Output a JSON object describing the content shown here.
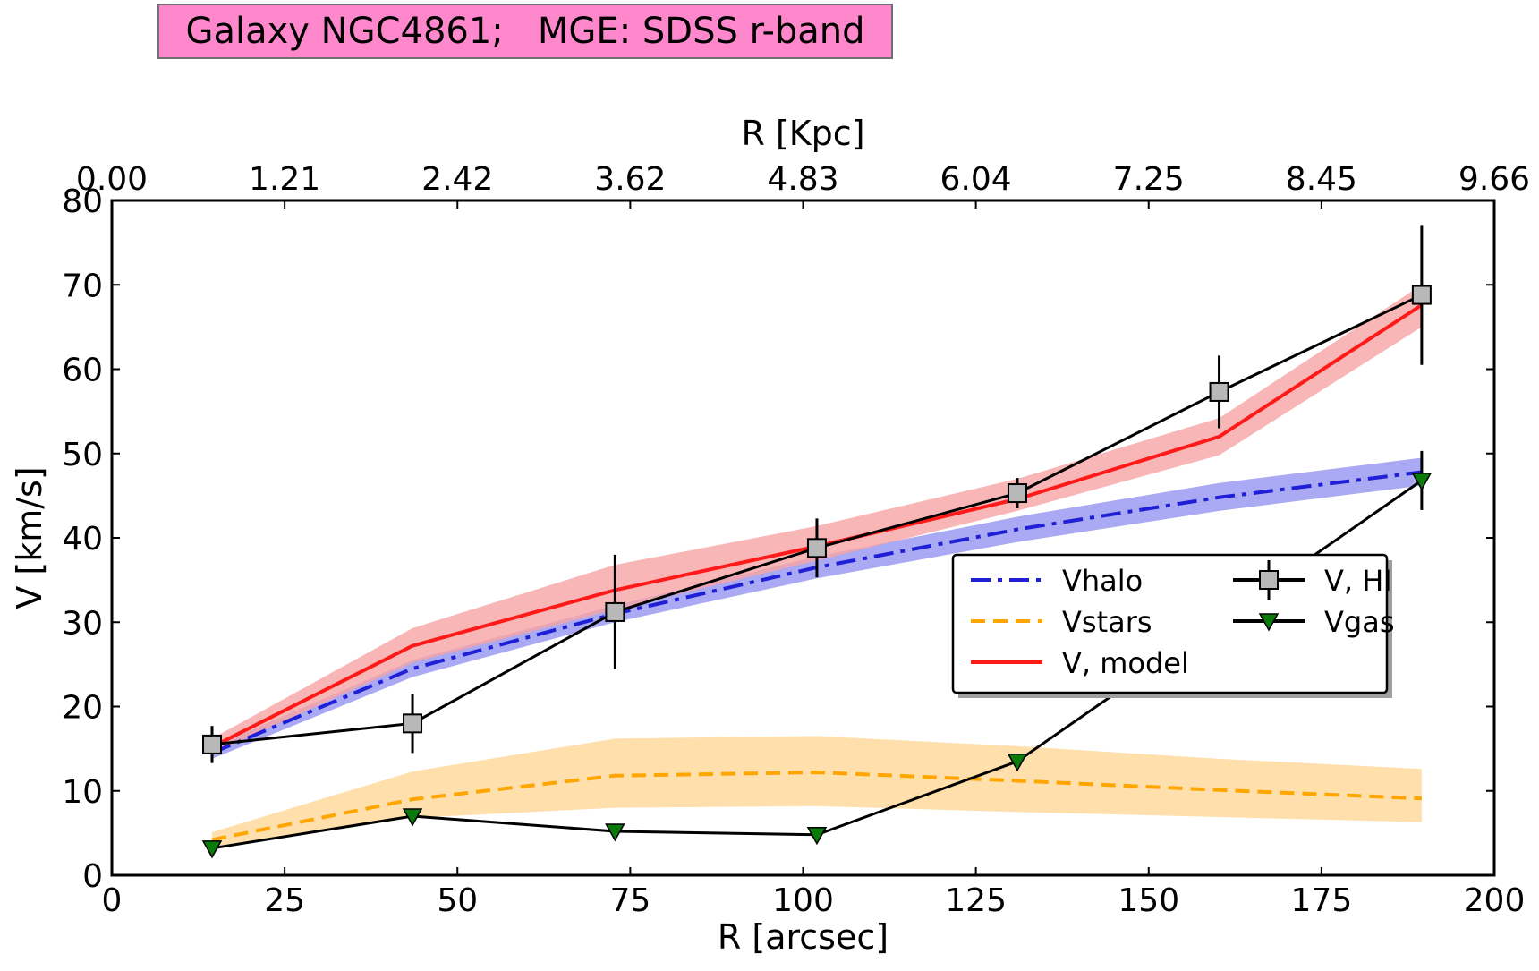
{
  "chart_data": {
    "type": "line",
    "title": "Galaxy NGC4861;   MGE: SDSS r-band",
    "xlabel": "R [arcsec]",
    "ylabel": "V [km/s]",
    "top_xlabel": "R [Kpc]",
    "xlim": [
      0,
      200
    ],
    "ylim": [
      0,
      80
    ],
    "xticks": [
      "0",
      "25",
      "50",
      "75",
      "100",
      "125",
      "150",
      "175",
      "200"
    ],
    "yticks": [
      "0",
      "10",
      "20",
      "30",
      "40",
      "50",
      "60",
      "70",
      "80"
    ],
    "top_xticks": [
      "0.00",
      "1.21",
      "2.42",
      "3.62",
      "4.83",
      "6.04",
      "7.25",
      "8.45",
      "9.66"
    ],
    "colors": {
      "vhalo": "#1f1fd6",
      "vhalo_band": "#8c8cf0",
      "vstars": "#ffa500",
      "vstars_band": "#ffd99c",
      "vmodel": "#ff1a1a",
      "vmodel_band": "#f7a4a4",
      "vhi_marker": "#b8b8b8",
      "vgas_marker": "#0a7a0a"
    },
    "legend": {
      "vhalo": "Vhalo",
      "vstars": "Vstars",
      "vmodel": "V, model",
      "vhi": "V, HI",
      "vgas": "Vgas"
    },
    "series": {
      "vhalo": {
        "x": [
          14.5,
          43.5,
          72.8,
          102,
          131,
          160.2,
          189.5
        ],
        "y": [
          14.5,
          24.5,
          31,
          36.5,
          41,
          44.8,
          47.8
        ],
        "lower": [
          13.8,
          23.5,
          30,
          35.2,
          39.5,
          43.2,
          46.2
        ],
        "upper": [
          15.2,
          25.5,
          32,
          37.8,
          42.5,
          46.5,
          49.5
        ]
      },
      "vstars": {
        "x": [
          14.5,
          43.5,
          72.8,
          102,
          131,
          160.2,
          189.5
        ],
        "y": [
          4.2,
          9,
          11.8,
          12.2,
          11.2,
          10.1,
          9.1
        ],
        "lower": [
          3.4,
          6.8,
          8,
          8.2,
          7.5,
          6.9,
          6.3
        ],
        "upper": [
          5.1,
          12.3,
          16.2,
          16.5,
          15.3,
          13.8,
          12.6
        ]
      },
      "vmodel": {
        "x": [
          14.5,
          43.5,
          72.8,
          102,
          131,
          160.2,
          189.5
        ],
        "y": [
          15.2,
          27.2,
          33.8,
          39,
          44.6,
          52,
          67.6
        ],
        "lower": [
          14.4,
          25.2,
          31.5,
          37.3,
          43.2,
          49.8,
          65
        ],
        "upper": [
          16.2,
          29.3,
          36.8,
          41.4,
          47,
          54.2,
          70
        ]
      },
      "vhi": {
        "x": [
          14.5,
          43.5,
          72.8,
          102,
          131,
          160.2,
          189.5
        ],
        "y": [
          15.5,
          18,
          31.2,
          38.8,
          45.3,
          57.3,
          68.8
        ],
        "err": [
          2.2,
          3.5,
          6.8,
          3.5,
          1.8,
          4.3,
          8.3
        ]
      },
      "vgas": {
        "x": [
          14.5,
          43.5,
          72.8,
          102,
          131,
          189.5
        ],
        "y": [
          3.2,
          7,
          5.2,
          4.8,
          13.5,
          46.8
        ],
        "err": [
          0,
          0,
          0,
          0,
          0,
          3.5
        ]
      }
    }
  }
}
